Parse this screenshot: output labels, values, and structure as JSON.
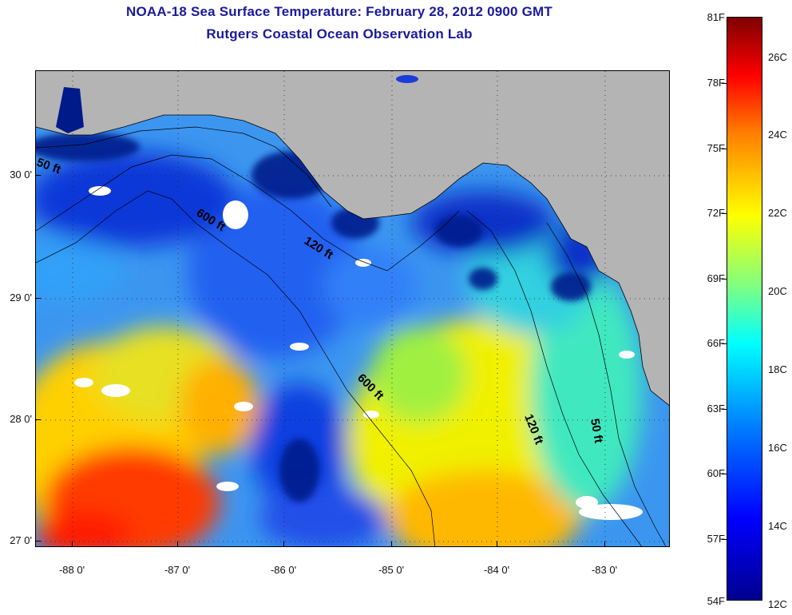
{
  "title": {
    "line1": "NOAA-18 Sea Surface Temperature:  February 28, 2012 0900 GMT",
    "line2": "Rutgers Coastal Ocean Observation Lab"
  },
  "axes": {
    "lat_labels": [
      "30 0'",
      "29 0'",
      "28 0'",
      "27 0'"
    ],
    "lon_labels": [
      "-88 0'",
      "-87 0'",
      "-86 0'",
      "-85 0'",
      "-84 0'",
      "-83 0'"
    ]
  },
  "contours": {
    "label_50": "50 ft",
    "label_120": "120 ft",
    "label_600": "600 ft"
  },
  "colorbar": {
    "fahrenheit": [
      "81F",
      "78F",
      "75F",
      "72F",
      "69F",
      "66F",
      "63F",
      "60F",
      "57F",
      "54F"
    ],
    "celsius": [
      "26C",
      "24C",
      "22C",
      "20C",
      "18C",
      "16C",
      "14C",
      "12C"
    ]
  },
  "colors": {
    "land": "#b4b4b4",
    "cloud": "#ffffff",
    "title": "#1a1a9c"
  }
}
